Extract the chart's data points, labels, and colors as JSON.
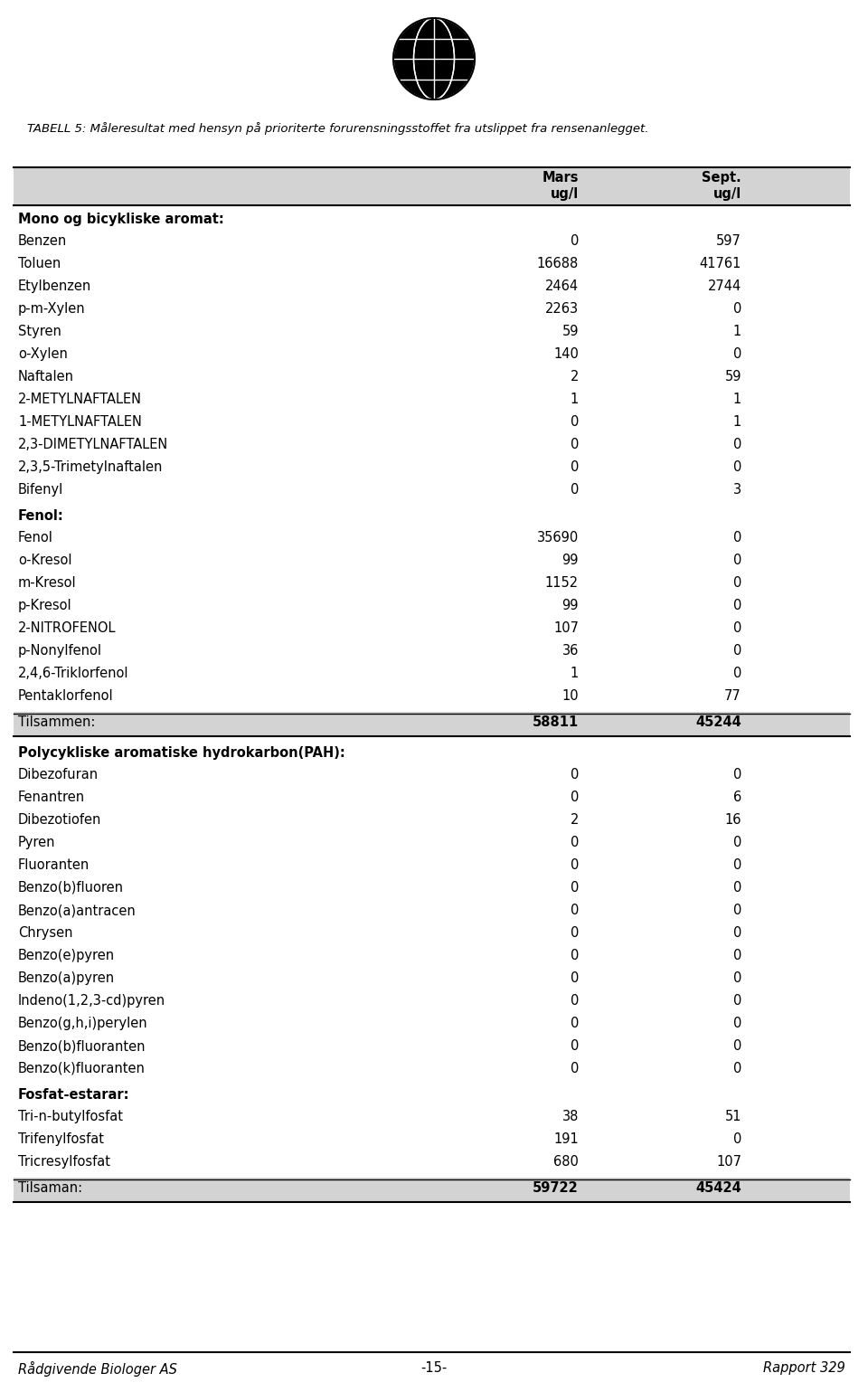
{
  "title_italic": "TABELL 5: Måleresultat med hensyn på prioriterte forurensningsstoffet fra utslippet fra rensenanlegget.",
  "col1_header": "Mars",
  "col2_header": "Sept.",
  "col1_unit": "ug/l",
  "col2_unit": "ug/l",
  "sections": [
    {
      "header": "Mono og bicykliske aromat:",
      "header_bold": true,
      "is_total": false,
      "rows": [
        {
          "label": "Benzen",
          "v1": "0",
          "v2": "597"
        },
        {
          "label": "Toluen",
          "v1": "16688",
          "v2": "41761"
        },
        {
          "label": "Etylbenzen",
          "v1": "2464",
          "v2": "2744"
        },
        {
          "label": "p-m-Xylen",
          "v1": "2263",
          "v2": "0"
        },
        {
          "label": "Styren",
          "v1": "59",
          "v2": "1"
        },
        {
          "label": "o-Xylen",
          "v1": "140",
          "v2": "0"
        },
        {
          "label": "Naftalen",
          "v1": "2",
          "v2": "59"
        },
        {
          "label": "2-METYLNAFTALEN",
          "v1": "1",
          "v2": "1"
        },
        {
          "label": "1-METYLNAFTALEN",
          "v1": "0",
          "v2": "1"
        },
        {
          "label": "2,3-DIMETYLNAFTALEN",
          "v1": "0",
          "v2": "0"
        },
        {
          "label": "2,3,5-Trimetylnaftalen",
          "v1": "0",
          "v2": "0"
        },
        {
          "label": "Bifenyl",
          "v1": "0",
          "v2": "3"
        }
      ]
    },
    {
      "header": "Fenol:",
      "header_bold": true,
      "is_total": false,
      "rows": [
        {
          "label": "Fenol",
          "v1": "35690",
          "v2": "0"
        },
        {
          "label": "o-Kresol",
          "v1": "99",
          "v2": "0"
        },
        {
          "label": "m-Kresol",
          "v1": "1152",
          "v2": "0"
        },
        {
          "label": "p-Kresol",
          "v1": "99",
          "v2": "0"
        },
        {
          "label": "2-NITROFENOL",
          "v1": "107",
          "v2": "0"
        },
        {
          "label": "p-Nonylfenol",
          "v1": "36",
          "v2": "0"
        },
        {
          "label": "2,4,6-Triklorfenol",
          "v1": "1",
          "v2": "0"
        },
        {
          "label": "Pentaklorfenol",
          "v1": "10",
          "v2": "77"
        }
      ]
    },
    {
      "header": "Tilsammen:",
      "header_bold": false,
      "is_total": true,
      "rows": [
        {
          "label": "Tilsammen:",
          "v1": "58811",
          "v2": "45244"
        }
      ]
    },
    {
      "header": "Polycykliske aromatiske hydrokarbon(PAH):",
      "header_bold": true,
      "is_total": false,
      "rows": [
        {
          "label": "Dibezofuran",
          "v1": "0",
          "v2": "0"
        },
        {
          "label": "Fenantren",
          "v1": "0",
          "v2": "6"
        },
        {
          "label": "Dibezotiofen",
          "v1": "2",
          "v2": "16"
        },
        {
          "label": "Pyren",
          "v1": "0",
          "v2": "0"
        },
        {
          "label": "Fluoranten",
          "v1": "0",
          "v2": "0"
        },
        {
          "label": "Benzo(b)fluoren",
          "v1": "0",
          "v2": "0"
        },
        {
          "label": "Benzo(a)antracen",
          "v1": "0",
          "v2": "0"
        },
        {
          "label": "Chrysen",
          "v1": "0",
          "v2": "0"
        },
        {
          "label": "Benzo(e)pyren",
          "v1": "0",
          "v2": "0"
        },
        {
          "label": "Benzo(a)pyren",
          "v1": "0",
          "v2": "0"
        },
        {
          "label": "Indeno(1,2,3-cd)pyren",
          "v1": "0",
          "v2": "0"
        },
        {
          "label": "Benzo(g,h,i)perylen",
          "v1": "0",
          "v2": "0"
        },
        {
          "label": "Benzo(b)fluoranten",
          "v1": "0",
          "v2": "0"
        },
        {
          "label": "Benzo(k)fluoranten",
          "v1": "0",
          "v2": "0"
        }
      ]
    },
    {
      "header": "Fosfat-estarar:",
      "header_bold": true,
      "is_total": false,
      "rows": [
        {
          "label": "Tri-n-butylfosfat",
          "v1": "38",
          "v2": "51"
        },
        {
          "label": "Trifenylfosfat",
          "v1": "191",
          "v2": "0"
        },
        {
          "label": "Tricresylfosfat",
          "v1": "680",
          "v2": "107"
        }
      ]
    },
    {
      "header": "Tilsaman:",
      "header_bold": false,
      "is_total": true,
      "rows": [
        {
          "label": "Tilsaman:",
          "v1": "59722",
          "v2": "45424"
        }
      ]
    }
  ],
  "footer_left": "Rådgivende Biologer AS",
  "footer_center": "-15-",
  "footer_right": "Rapport 329",
  "bg_color": "#ffffff",
  "header_bg_color": "#d3d3d3",
  "total_bg_color": "#d3d3d3",
  "font_size": 10.5,
  "title_font_size": 9.5
}
